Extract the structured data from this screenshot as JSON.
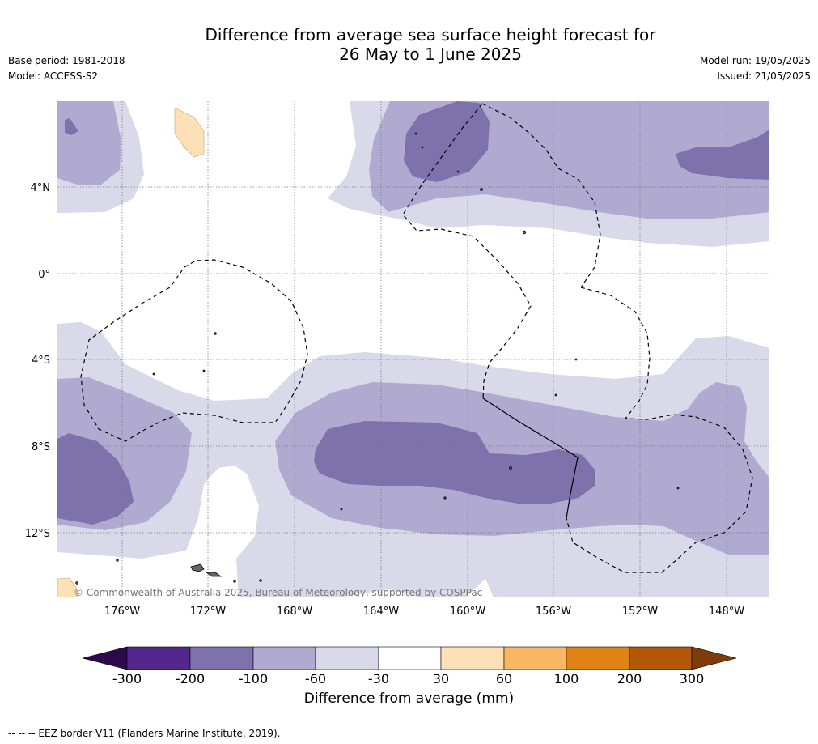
{
  "header": {
    "title_line1": "Difference from average sea surface height forecast for",
    "title_line2": "26 May to 1 June 2025",
    "base_period": "Base period: 1981-2018",
    "model": "Model: ACCESS-S2",
    "model_run": "Model run: 19/05/2025",
    "issued": "Issued: 21/05/2025"
  },
  "map": {
    "copyright": "© Commonwealth of Australia 2025, Bureau of Meteorology, supported by COSPPac",
    "lat_labels": [
      "4°N",
      "0°",
      "4°S",
      "8°S",
      "12°S"
    ],
    "lon_labels": [
      "176°W",
      "172°W",
      "168°W",
      "164°W",
      "160°W",
      "156°W",
      "152°W",
      "148°W"
    ],
    "graticule_lats": [
      4,
      0,
      -4,
      -8,
      -12
    ],
    "graticule_lons": [
      -176,
      -172,
      -168,
      -164,
      -160,
      -156,
      -152,
      -148
    ]
  },
  "legend": {
    "label": "Difference from average (mm)",
    "ticks": [
      "-300",
      "-200",
      "-100",
      "-60",
      "-30",
      "30",
      "60",
      "100",
      "200",
      "300"
    ],
    "colors": [
      "#2d0a4e",
      "#54278f",
      "#7f72ac",
      "#b0aad1",
      "#d9d9ea",
      "#ffffff",
      "#fee0b6",
      "#f8b762",
      "#e08214",
      "#b35806",
      "#7f3b08"
    ],
    "footer": "--  --  -- EEZ border V11 (Flanders Marine Institute, 2019)."
  }
}
